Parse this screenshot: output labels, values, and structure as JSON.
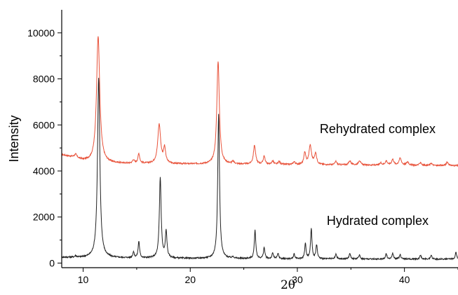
{
  "chart_data": {
    "type": "line",
    "xlabel": "2θ",
    "ylabel": "Intensity",
    "xlim": [
      8,
      45
    ],
    "ylim": [
      -200,
      11000
    ],
    "x_ticks": [
      10,
      20,
      30,
      40
    ],
    "y_ticks": [
      0,
      2000,
      4000,
      6000,
      8000,
      10000
    ],
    "grid": false,
    "annotations": [
      {
        "text": "Rehydrated complex",
        "x": 37.5,
        "y": 5650
      },
      {
        "text": "Hydrated complex",
        "x": 37.5,
        "y": 1650
      }
    ],
    "series": [
      {
        "color": "#e8523a",
        "baseline": 4300,
        "baseline_points": [
          [
            8,
            4700
          ],
          [
            9,
            4600
          ],
          [
            10,
            4450
          ],
          [
            11,
            4350
          ],
          [
            14,
            4320
          ],
          [
            20,
            4300
          ],
          [
            28,
            4280
          ],
          [
            35,
            4260
          ],
          [
            45,
            4230
          ]
        ],
        "peaks": [
          {
            "x": 9.3,
            "h": 150,
            "w": 0.12
          },
          {
            "x": 11.4,
            "h": 5500,
            "w": 0.18
          },
          {
            "x": 14.7,
            "h": 150,
            "w": 0.1
          },
          {
            "x": 15.2,
            "h": 420,
            "w": 0.1
          },
          {
            "x": 17.1,
            "h": 1700,
            "w": 0.16
          },
          {
            "x": 17.6,
            "h": 650,
            "w": 0.12
          },
          {
            "x": 22.6,
            "h": 4480,
            "w": 0.14
          },
          {
            "x": 24.0,
            "h": 100,
            "w": 0.12
          },
          {
            "x": 26.0,
            "h": 820,
            "w": 0.12
          },
          {
            "x": 26.9,
            "h": 360,
            "w": 0.1
          },
          {
            "x": 27.7,
            "h": 150,
            "w": 0.1
          },
          {
            "x": 28.3,
            "h": 130,
            "w": 0.1
          },
          {
            "x": 29.7,
            "h": 120,
            "w": 0.1
          },
          {
            "x": 30.7,
            "h": 520,
            "w": 0.1
          },
          {
            "x": 31.2,
            "h": 820,
            "w": 0.14
          },
          {
            "x": 31.7,
            "h": 480,
            "w": 0.12
          },
          {
            "x": 33.6,
            "h": 150,
            "w": 0.1
          },
          {
            "x": 34.9,
            "h": 180,
            "w": 0.12
          },
          {
            "x": 35.8,
            "h": 200,
            "w": 0.12
          },
          {
            "x": 37.8,
            "h": 100,
            "w": 0.1
          },
          {
            "x": 38.3,
            "h": 180,
            "w": 0.12
          },
          {
            "x": 38.9,
            "h": 250,
            "w": 0.12
          },
          {
            "x": 39.6,
            "h": 300,
            "w": 0.14
          },
          {
            "x": 40.3,
            "h": 150,
            "w": 0.12
          },
          {
            "x": 41.5,
            "h": 130,
            "w": 0.1
          },
          {
            "x": 42.5,
            "h": 100,
            "w": 0.1
          },
          {
            "x": 44.0,
            "h": 150,
            "w": 0.12
          }
        ]
      },
      {
        "color": "#222222",
        "baseline": 200,
        "baseline_points": [
          [
            8,
            250
          ],
          [
            11,
            230
          ],
          [
            20,
            200
          ],
          [
            30,
            180
          ],
          [
            45,
            170
          ]
        ],
        "peaks": [
          {
            "x": 9.3,
            "h": 60,
            "w": 0.1
          },
          {
            "x": 11.45,
            "h": 7800,
            "w": 0.13
          },
          {
            "x": 14.7,
            "h": 250,
            "w": 0.08
          },
          {
            "x": 15.2,
            "h": 720,
            "w": 0.08
          },
          {
            "x": 17.2,
            "h": 3500,
            "w": 0.1
          },
          {
            "x": 17.75,
            "h": 1150,
            "w": 0.09
          },
          {
            "x": 22.65,
            "h": 6300,
            "w": 0.1
          },
          {
            "x": 24.0,
            "h": 80,
            "w": 0.08
          },
          {
            "x": 26.05,
            "h": 1250,
            "w": 0.08
          },
          {
            "x": 26.9,
            "h": 480,
            "w": 0.08
          },
          {
            "x": 27.7,
            "h": 240,
            "w": 0.08
          },
          {
            "x": 28.2,
            "h": 220,
            "w": 0.08
          },
          {
            "x": 29.7,
            "h": 200,
            "w": 0.08
          },
          {
            "x": 30.75,
            "h": 650,
            "w": 0.08
          },
          {
            "x": 31.3,
            "h": 1300,
            "w": 0.08
          },
          {
            "x": 31.8,
            "h": 600,
            "w": 0.08
          },
          {
            "x": 33.6,
            "h": 200,
            "w": 0.08
          },
          {
            "x": 34.9,
            "h": 250,
            "w": 0.08
          },
          {
            "x": 35.8,
            "h": 180,
            "w": 0.08
          },
          {
            "x": 38.3,
            "h": 220,
            "w": 0.08
          },
          {
            "x": 38.9,
            "h": 250,
            "w": 0.08
          },
          {
            "x": 39.6,
            "h": 200,
            "w": 0.08
          },
          {
            "x": 41.5,
            "h": 180,
            "w": 0.08
          },
          {
            "x": 42.5,
            "h": 150,
            "w": 0.08
          },
          {
            "x": 44.8,
            "h": 300,
            "w": 0.08
          }
        ]
      }
    ]
  }
}
